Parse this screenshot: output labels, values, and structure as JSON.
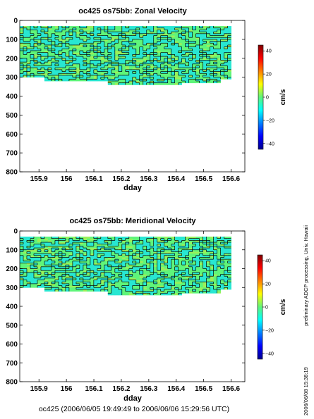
{
  "figure": {
    "footer": "oc425 (2006/06/05 19:49:49 to 2006/06/06 15:29:56 UTC)",
    "side_note": "preliminary ADCP processing,  Univ. Hawaii",
    "timestamp": "2006/06/08 15:38:19"
  },
  "colors": {
    "zero_velocity": "#5ff57a",
    "positive_small": "#9af05a",
    "negative_small": "#28e7d2",
    "strong_negative": "#1f3cff",
    "contour": "#000000"
  },
  "chart_data": [
    {
      "type": "heatmap",
      "title": "oc425 os75bb: Zonal Velocity",
      "xlabel": "dday",
      "ylabel": "",
      "xlim": [
        155.83,
        156.65
      ],
      "ylim": [
        800,
        0
      ],
      "x_ticks": [
        155.9,
        156,
        156.1,
        156.2,
        156.3,
        156.4,
        156.5,
        156.6
      ],
      "x_tick_labels": [
        "155.9",
        "156",
        "156.1",
        "156.2",
        "156.3",
        "156.4",
        "156.5",
        "156.6"
      ],
      "y_ticks": [
        0,
        100,
        200,
        300,
        400,
        500,
        600,
        700,
        800
      ],
      "y_tick_labels": [
        "0",
        "100",
        "200",
        "300",
        "400",
        "500",
        "600",
        "700",
        "800"
      ],
      "grid": false,
      "data_extent": {
        "depth_top": 30,
        "depth_bottom_approx": [
          300,
          340
        ],
        "x_start": 155.83,
        "x_end": 156.6
      },
      "value_range_typical": [
        -10,
        10
      ],
      "colorbar": {
        "label": "cm/s",
        "range": [
          -45,
          45
        ],
        "ticks": [
          40,
          20,
          0,
          -20,
          -40
        ],
        "tick_labels": [
          "40",
          "20",
          "0",
          "−20",
          "−40"
        ]
      }
    },
    {
      "type": "heatmap",
      "title": "oc425 os75bb: Meridional Velocity",
      "xlabel": "dday",
      "ylabel": "",
      "xlim": [
        155.83,
        156.65
      ],
      "ylim": [
        800,
        0
      ],
      "x_ticks": [
        155.9,
        156,
        156.1,
        156.2,
        156.3,
        156.4,
        156.5,
        156.6
      ],
      "x_tick_labels": [
        "155.9",
        "156",
        "156.1",
        "156.2",
        "156.3",
        "156.4",
        "156.5",
        "156.6"
      ],
      "y_ticks": [
        0,
        100,
        200,
        300,
        400,
        500,
        600,
        700,
        800
      ],
      "y_tick_labels": [
        "0",
        "100",
        "200",
        "300",
        "400",
        "500",
        "600",
        "700",
        "800"
      ],
      "grid": false,
      "data_extent": {
        "depth_top": 30,
        "depth_bottom_approx": [
          300,
          340
        ],
        "x_start": 155.83,
        "x_end": 156.6
      },
      "value_range_typical": [
        -10,
        10
      ],
      "feature": {
        "description": "strong negative core",
        "x": 156.6,
        "depth": 110,
        "value": -40
      },
      "colorbar": {
        "label": "cm/s",
        "range": [
          -45,
          45
        ],
        "ticks": [
          40,
          20,
          0,
          -20,
          -40
        ],
        "tick_labels": [
          "40",
          "20",
          "0",
          "−20",
          "−40"
        ]
      }
    }
  ]
}
